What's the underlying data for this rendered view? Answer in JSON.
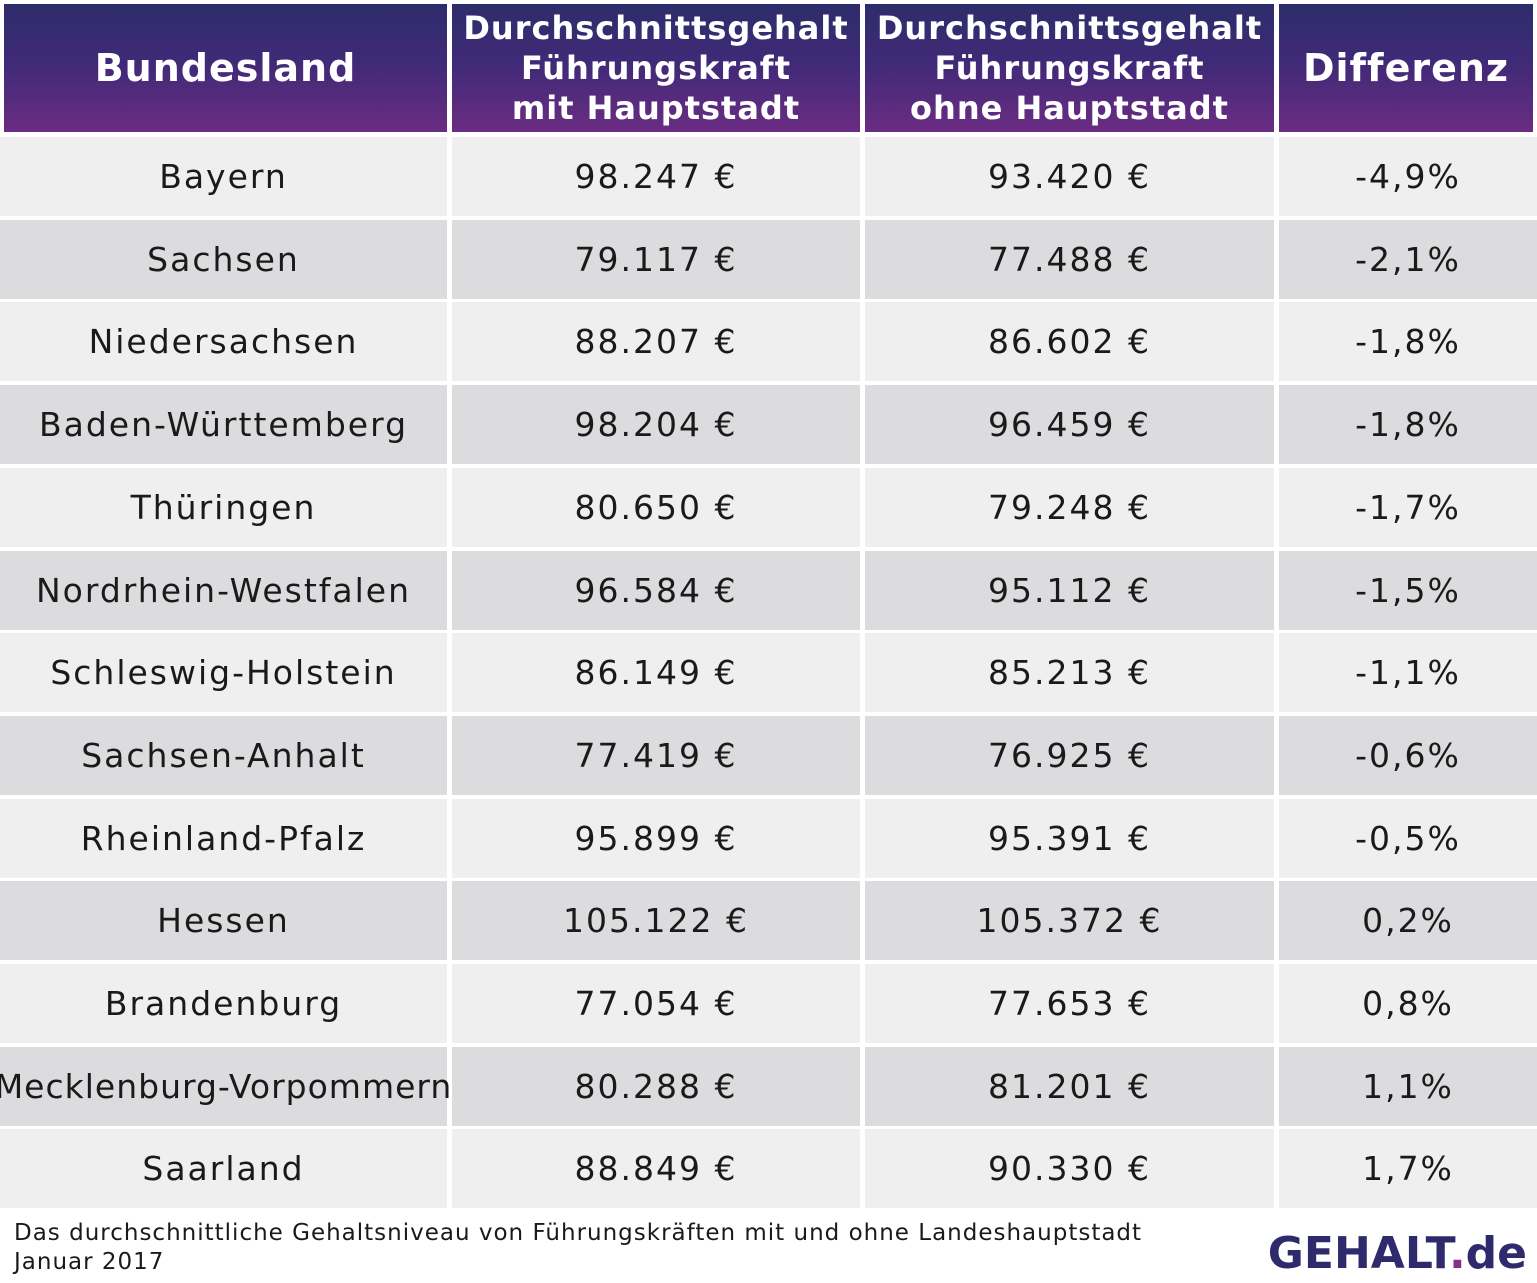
{
  "chart_data": {
    "type": "table",
    "columns": [
      "Bundesland",
      "Durchschnittsgehalt Führungskraft mit Hauptstadt",
      "Durchschnittsgehalt Führungskraft ohne Hauptstadt",
      "Differenz"
    ],
    "header": {
      "col1": "Bundesland",
      "col2_lines": [
        "Durchschnittsgehalt",
        "Führungskraft",
        "mit Hauptstadt"
      ],
      "col3_lines": [
        "Durchschnittsgehalt",
        "Führungskraft",
        "ohne Hauptstadt"
      ],
      "col4": "Differenz"
    },
    "rows": [
      {
        "land": "Bayern",
        "mit": "98.247 €",
        "ohne": "93.420 €",
        "diff": "-4,9%"
      },
      {
        "land": "Sachsen",
        "mit": "79.117 €",
        "ohne": "77.488 €",
        "diff": "-2,1%"
      },
      {
        "land": "Niedersachsen",
        "mit": "88.207 €",
        "ohne": "86.602 €",
        "diff": "-1,8%"
      },
      {
        "land": "Baden-Württemberg",
        "mit": "98.204 €",
        "ohne": "96.459 €",
        "diff": "-1,8%"
      },
      {
        "land": "Thüringen",
        "mit": "80.650 €",
        "ohne": "79.248 €",
        "diff": "-1,7%"
      },
      {
        "land": "Nordrhein-Westfalen",
        "mit": "96.584 €",
        "ohne": "95.112 €",
        "diff": "-1,5%"
      },
      {
        "land": "Schleswig-Holstein",
        "mit": "86.149 €",
        "ohne": "85.213 €",
        "diff": "-1,1%"
      },
      {
        "land": "Sachsen-Anhalt",
        "mit": "77.419 €",
        "ohne": "76.925 €",
        "diff": "-0,6%"
      },
      {
        "land": "Rheinland-Pfalz",
        "mit": "95.899 €",
        "ohne": "95.391 €",
        "diff": "-0,5%"
      },
      {
        "land": "Hessen",
        "mit": "105.122 €",
        "ohne": "105.372 €",
        "diff": "0,2%"
      },
      {
        "land": "Brandenburg",
        "mit": "77.054 €",
        "ohne": "77.653 €",
        "diff": "0,8%"
      },
      {
        "land": "Mecklenburg-Vorpommern",
        "mit": "80.288 €",
        "ohne": "81.201 €",
        "diff": "1,1%"
      },
      {
        "land": "Saarland",
        "mit": "88.849 €",
        "ohne": "90.330 €",
        "diff": "1,7%"
      }
    ]
  },
  "footnote": {
    "line1": "Das durchschnittliche Gehaltsniveau von Führungskräften mit und ohne Landeshauptstadt",
    "line2": "Januar 2017"
  },
  "logo": {
    "text": "GEHALT",
    "dot": ".",
    "tld": "de"
  },
  "colors": {
    "header_top": "#2d2d6b",
    "header_bottom": "#6a2c82",
    "row_light": "#efefef",
    "row_dark": "#dcdcdf",
    "logo": "#2e2a6b"
  }
}
